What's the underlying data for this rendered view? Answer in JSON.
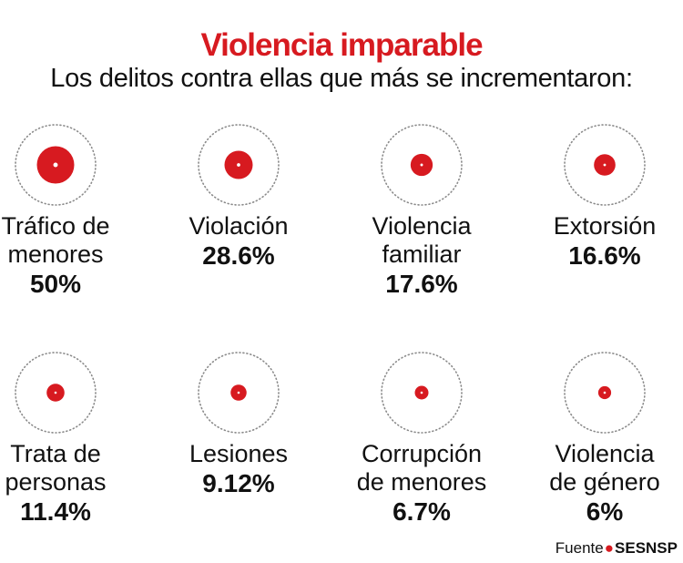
{
  "header": {
    "title": "Violencia imparable",
    "subtitle": "Los delitos contra ellas que más se incrementaron:"
  },
  "chart_data": {
    "type": "bubble",
    "title": "Violencia imparable",
    "subtitle": "Los delitos contra ellas que más se incrementaron:",
    "categories": [
      "Tráfico de menores",
      "Violación",
      "Violencia familiar",
      "Extorsión",
      "Trata de personas",
      "Lesiones",
      "Corrupción de menores",
      "Violencia de género"
    ],
    "values": [
      50,
      28.6,
      17.6,
      16.6,
      11.4,
      9.12,
      6.7,
      6
    ],
    "unit": "%"
  },
  "items": [
    {
      "label": "Tráfico de\nmenores",
      "value": "50%"
    },
    {
      "label": "Violación",
      "value": "28.6%"
    },
    {
      "label": "Violencia\nfamiliar",
      "value": "17.6%"
    },
    {
      "label": "Extorsión",
      "value": "16.6%"
    },
    {
      "label": "Trata de\npersonas",
      "value": "11.4%"
    },
    {
      "label": "Lesiones",
      "value": "9.12%"
    },
    {
      "label": "Corrupción\nde menores",
      "value": "6.7%"
    },
    {
      "label": "Violencia\nde género",
      "value": "6%"
    }
  ],
  "source": {
    "prefix": "Fuente",
    "name": "SESNSP"
  },
  "colors": {
    "accent": "#d71a20",
    "text": "#111111",
    "ring": "#8a8a8a"
  }
}
